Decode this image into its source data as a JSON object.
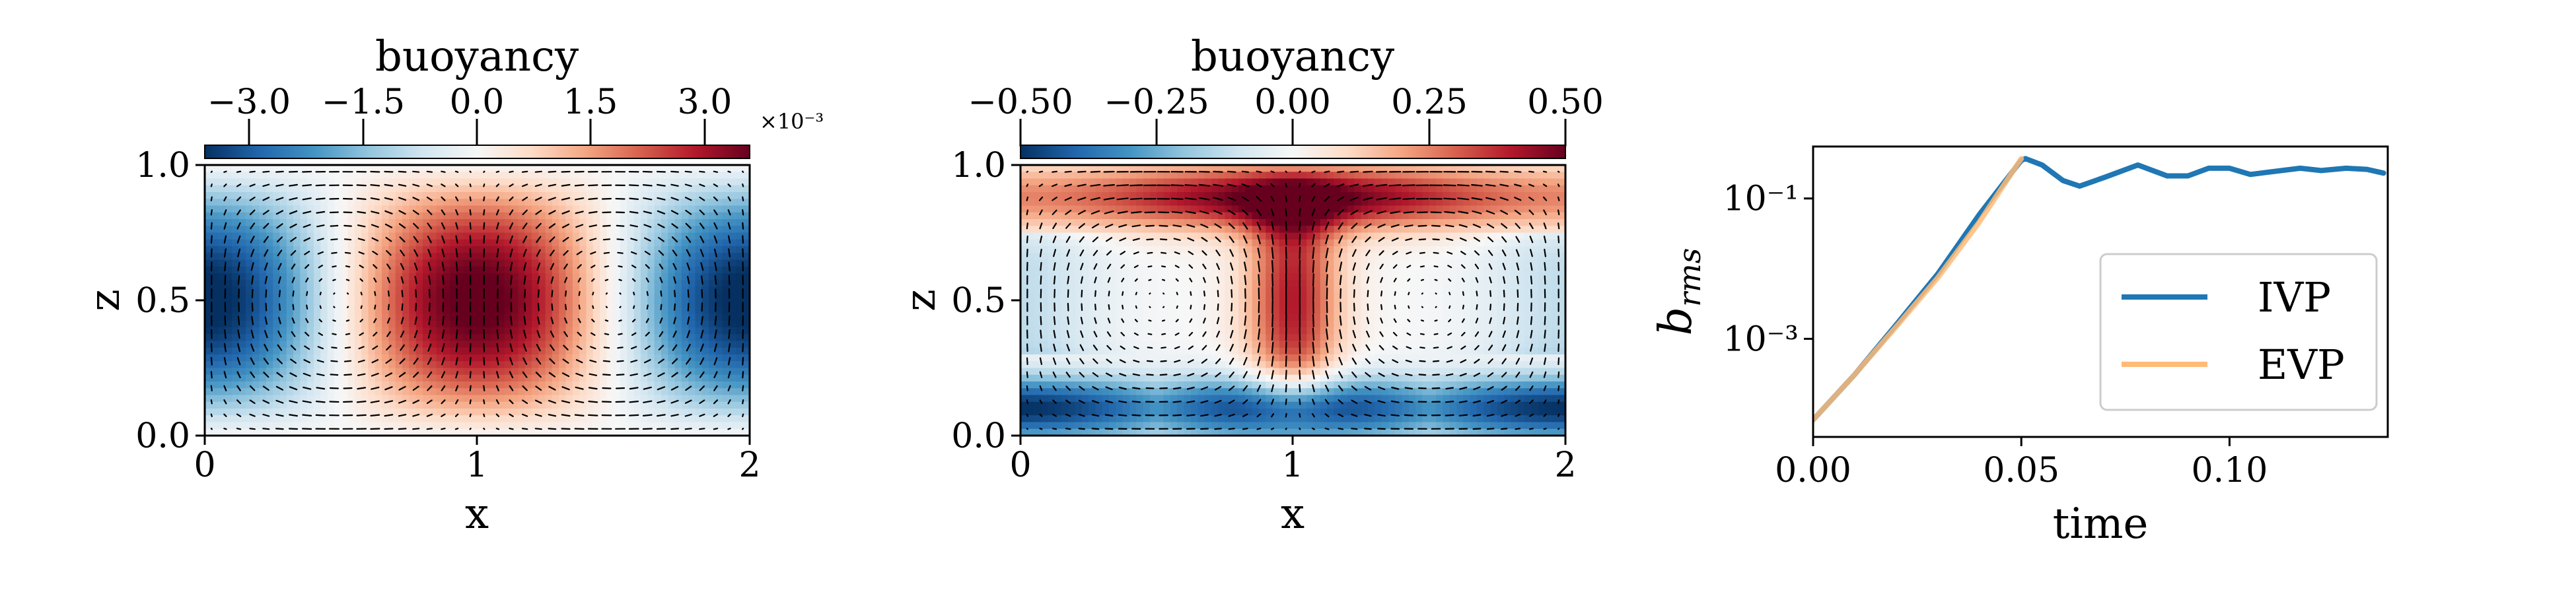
{
  "chart_data": [
    {
      "type": "heatmap",
      "colorbar": {
        "label": "buoyancy",
        "ticks": [
          "−3.0",
          "−1.5",
          "0.0",
          "1.5",
          "3.0"
        ],
        "tick_values": [
          -3.0,
          -1.5,
          0.0,
          1.5,
          3.0
        ],
        "range": [
          -3.6,
          3.6
        ],
        "multiplier": "×10⁻³",
        "colormap": "RdBu_r"
      },
      "xlabel": "x",
      "ylabel": "z",
      "xticks": [
        "0",
        "1",
        "2"
      ],
      "xtick_values": [
        0,
        1,
        2
      ],
      "yticks": [
        "0.0",
        "0.5",
        "1.0"
      ],
      "ytick_values": [
        0.0,
        0.5,
        1.0
      ],
      "xlim": [
        0,
        2
      ],
      "ylim": [
        0,
        1
      ],
      "field": "linear mode: buoyancy ~ cos(pi x) sin(pi z), max at x=1, negative at x=0 and x=2",
      "quiver": true
    },
    {
      "type": "heatmap",
      "colorbar": {
        "label": "buoyancy",
        "ticks": [
          "−0.50",
          "−0.25",
          "0.00",
          "0.25",
          "0.50"
        ],
        "tick_values": [
          -0.5,
          -0.25,
          0.0,
          0.25,
          0.5
        ],
        "range": [
          -0.5,
          0.5
        ],
        "colormap": "RdBu_r"
      },
      "xlabel": "x",
      "ylabel": "z",
      "xticks": [
        "0",
        "1",
        "2"
      ],
      "xtick_values": [
        0,
        1,
        2
      ],
      "yticks": [
        "0.0",
        "0.5",
        "1.0"
      ],
      "ytick_values": [
        0.0,
        0.5,
        1.0
      ],
      "xlim": [
        0,
        2
      ],
      "ylim": [
        0,
        1
      ],
      "field": "nonlinear convection: warm top boundary layer, cold bottom boundary layer, central plume at x=1",
      "quiver": true
    },
    {
      "type": "line",
      "xlabel": "time",
      "ylabel": "b_rms",
      "yscale": "log",
      "xticks": [
        "0.00",
        "0.05",
        "0.10"
      ],
      "xtick_values": [
        0.0,
        0.05,
        0.1
      ],
      "yticks": [
        "10⁻¹",
        "10⁻³"
      ],
      "ytick_values": [
        0.1,
        0.001
      ],
      "xlim": [
        0,
        0.138
      ],
      "ylim": [
        4e-05,
        0.55
      ],
      "legend_position": "lower-right",
      "series": [
        {
          "name": "IVP",
          "color": "#1f77b4",
          "x": [
            0.0,
            0.01,
            0.02,
            0.03,
            0.04,
            0.05,
            0.051,
            0.055,
            0.06,
            0.064,
            0.07,
            0.078,
            0.085,
            0.09,
            0.095,
            0.1,
            0.105,
            0.11,
            0.117,
            0.122,
            0.128,
            0.133,
            0.137
          ],
          "y": [
            7e-05,
            0.00031,
            0.0016,
            0.0085,
            0.06,
            0.35,
            0.37,
            0.3,
            0.18,
            0.15,
            0.2,
            0.3,
            0.21,
            0.21,
            0.27,
            0.27,
            0.22,
            0.24,
            0.27,
            0.25,
            0.27,
            0.26,
            0.23
          ]
        },
        {
          "name": "EVP",
          "color": "#ffbb78",
          "x": [
            0.0,
            0.01,
            0.02,
            0.03,
            0.04,
            0.05
          ],
          "y": [
            7e-05,
            0.00031,
            0.0015,
            0.0075,
            0.047,
            0.37
          ]
        }
      ]
    }
  ]
}
